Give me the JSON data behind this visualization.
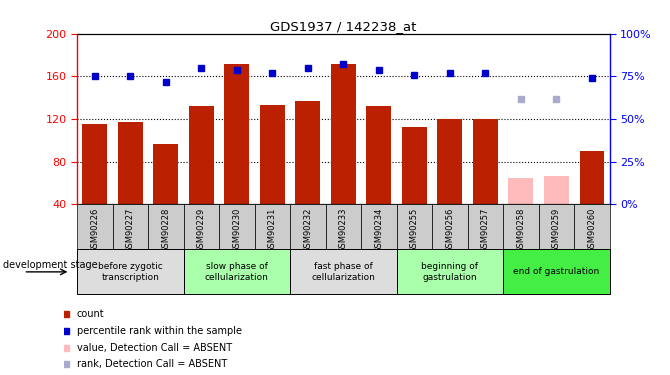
{
  "title": "GDS1937 / 142238_at",
  "samples": [
    "GSM90226",
    "GSM90227",
    "GSM90228",
    "GSM90229",
    "GSM90230",
    "GSM90231",
    "GSM90232",
    "GSM90233",
    "GSM90234",
    "GSM90255",
    "GSM90256",
    "GSM90257",
    "GSM90258",
    "GSM90259",
    "GSM90260"
  ],
  "bar_values": [
    115,
    117,
    97,
    132,
    172,
    133,
    137,
    172,
    132,
    113,
    120,
    120,
    65,
    67,
    90
  ],
  "bar_absent": [
    false,
    false,
    false,
    false,
    false,
    false,
    false,
    false,
    false,
    false,
    false,
    false,
    true,
    true,
    false
  ],
  "rank_values": [
    75,
    75,
    72,
    80,
    79,
    77,
    80,
    82,
    79,
    76,
    77,
    77,
    62,
    62,
    74
  ],
  "rank_absent": [
    false,
    false,
    false,
    false,
    false,
    false,
    false,
    false,
    false,
    false,
    false,
    false,
    true,
    true,
    false
  ],
  "ylim_left": [
    40,
    200
  ],
  "ylim_right": [
    0,
    100
  ],
  "yticks_left": [
    40,
    80,
    120,
    160,
    200
  ],
  "yticks_right": [
    0,
    25,
    50,
    75,
    100
  ],
  "yticklabels_right": [
    "0%",
    "25%",
    "50%",
    "75%",
    "100%"
  ],
  "bar_color": "#bb2000",
  "bar_absent_color": "#ffbbbb",
  "rank_color": "#0000cc",
  "rank_absent_color": "#aaaacc",
  "stage_groups": [
    {
      "label": "before zygotic\ntranscription",
      "span": [
        0,
        2
      ],
      "bg": "#dddddd"
    },
    {
      "label": "slow phase of\ncellularization",
      "span": [
        3,
        5
      ],
      "bg": "#aaffaa"
    },
    {
      "label": "fast phase of\ncellularization",
      "span": [
        6,
        8
      ],
      "bg": "#dddddd"
    },
    {
      "label": "beginning of\ngastrulation",
      "span": [
        9,
        11
      ],
      "bg": "#aaffaa"
    },
    {
      "label": "end of gastrulation",
      "span": [
        12,
        14
      ],
      "bg": "#44ee44"
    }
  ],
  "dev_stage_label": "development stage",
  "legend_items": [
    {
      "color": "#bb2000",
      "label": "count",
      "marker": "s"
    },
    {
      "color": "#0000cc",
      "label": "percentile rank within the sample",
      "marker": "s"
    },
    {
      "color": "#ffbbbb",
      "label": "value, Detection Call = ABSENT",
      "marker": "s"
    },
    {
      "color": "#aaaacc",
      "label": "rank, Detection Call = ABSENT",
      "marker": "s"
    }
  ]
}
